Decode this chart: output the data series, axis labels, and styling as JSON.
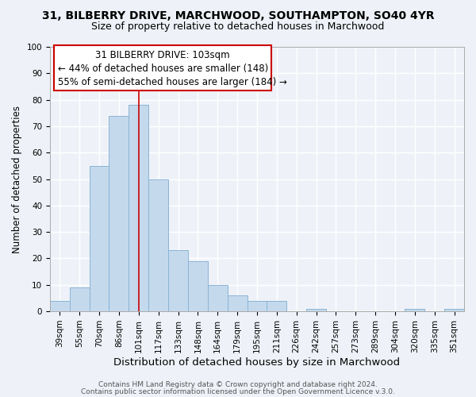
{
  "title1": "31, BILBERRY DRIVE, MARCHWOOD, SOUTHAMPTON, SO40 4YR",
  "title2": "Size of property relative to detached houses in Marchwood",
  "xlabel": "Distribution of detached houses by size in Marchwood",
  "ylabel": "Number of detached properties",
  "categories": [
    "39sqm",
    "55sqm",
    "70sqm",
    "86sqm",
    "101sqm",
    "117sqm",
    "133sqm",
    "148sqm",
    "164sqm",
    "179sqm",
    "195sqm",
    "211sqm",
    "226sqm",
    "242sqm",
    "257sqm",
    "273sqm",
    "289sqm",
    "304sqm",
    "320sqm",
    "335sqm",
    "351sqm"
  ],
  "values": [
    4,
    9,
    55,
    74,
    78,
    50,
    23,
    19,
    10,
    6,
    4,
    4,
    0,
    1,
    0,
    0,
    0,
    0,
    1,
    0,
    1
  ],
  "bar_color": "#c5d9ed",
  "bar_edge_color": "#8ab4d4",
  "vline_x": 4,
  "vline_color": "#cc0000",
  "annotation_line1": "31 BILBERRY DRIVE: 103sqm",
  "annotation_line2": "← 44% of detached houses are smaller (148)",
  "annotation_line3": "55% of semi-detached houses are larger (184) →",
  "ylim": [
    0,
    100
  ],
  "footer1": "Contains HM Land Registry data © Crown copyright and database right 2024.",
  "footer2": "Contains public sector information licensed under the Open Government Licence v.3.0.",
  "background_color": "#eef2f8",
  "grid_color": "#ffffff",
  "title1_fontsize": 10,
  "title2_fontsize": 9,
  "xlabel_fontsize": 9.5,
  "ylabel_fontsize": 8.5,
  "tick_fontsize": 7.5,
  "footer_fontsize": 6.5,
  "annotation_fontsize": 8.5
}
